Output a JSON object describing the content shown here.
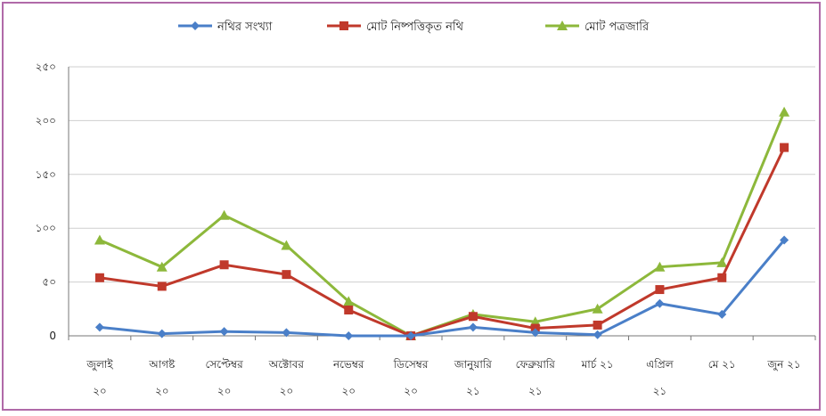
{
  "chart_data": {
    "type": "line",
    "categories": [
      [
        "জুলাই",
        "২০"
      ],
      [
        "আগষ্ট",
        "২০"
      ],
      [
        "সেপ্টেম্বর",
        "২০"
      ],
      [
        "অক্টোবর",
        "২০"
      ],
      [
        "নভেম্বর",
        "২০"
      ],
      [
        "ডিসেম্বর",
        "২০"
      ],
      [
        "জানুয়ারি",
        "২১"
      ],
      [
        "ফেব্রুয়ারি",
        "২১"
      ],
      [
        "মার্চ ২১",
        ""
      ],
      [
        "এপ্রিল",
        "২১"
      ],
      [
        "মে ২১",
        ""
      ],
      [
        "জুন ২১",
        ""
      ]
    ],
    "series": [
      {
        "name": "নথির সংখ্যা",
        "color": "#4a7fc8",
        "marker": "diamond",
        "values": [
          8,
          2,
          4,
          3,
          0,
          0,
          8,
          3,
          1,
          30,
          20,
          89
        ]
      },
      {
        "name": "মোট নিষ্পত্তিকৃত নথি",
        "color": "#c0392b",
        "marker": "square",
        "values": [
          54,
          46,
          66,
          57,
          24,
          0,
          18,
          7,
          10,
          43,
          54,
          175
        ]
      },
      {
        "name": "মোট পত্রজারি",
        "color": "#8db83b",
        "marker": "triangle",
        "values": [
          89,
          64,
          112,
          84,
          32,
          0,
          20,
          13,
          25,
          64,
          68,
          208
        ]
      }
    ],
    "y_ticks": [
      {
        "value": 0,
        "label": "0"
      },
      {
        "value": 50,
        "label": "৫০"
      },
      {
        "value": 100,
        "label": "১০০"
      },
      {
        "value": 150,
        "label": "১৫০"
      },
      {
        "value": 200,
        "label": "২০০"
      },
      {
        "value": 250,
        "label": "২৫০"
      }
    ],
    "ylim": [
      0,
      250
    ],
    "grid": true,
    "legend_position": "top"
  }
}
